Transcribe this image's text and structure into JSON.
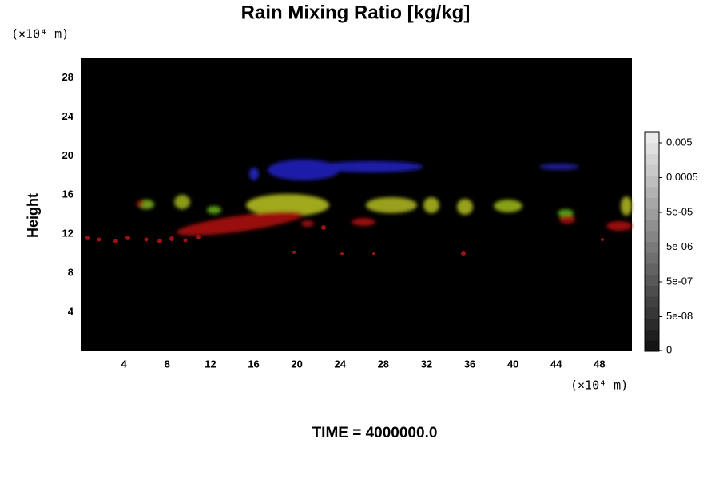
{
  "chart_data": {
    "type": "field",
    "title": "Rain Mixing Ratio [kg/kg]",
    "subtitle": "TIME = 4000000.0",
    "y_label": "Height",
    "y_unit": "(×10⁴ m)",
    "x_unit": "(×10⁴ m)",
    "xlim": [
      0,
      51
    ],
    "ylim": [
      0,
      30
    ],
    "xticks": [
      4,
      8,
      12,
      16,
      20,
      24,
      28,
      32,
      36,
      40,
      44,
      48
    ],
    "yticks": [
      4,
      8,
      12,
      16,
      20,
      24,
      28
    ],
    "colorbar": {
      "scale": "log",
      "ticks": [
        0.005,
        0.0005,
        {
          "value": 5e-05,
          "label": "5e-05"
        },
        {
          "value": 5e-06,
          "label": "5e-06"
        },
        {
          "value": 5e-07,
          "label": "5e-07"
        },
        {
          "value": 5e-08,
          "label": "5e-08"
        },
        0
      ]
    }
  }
}
